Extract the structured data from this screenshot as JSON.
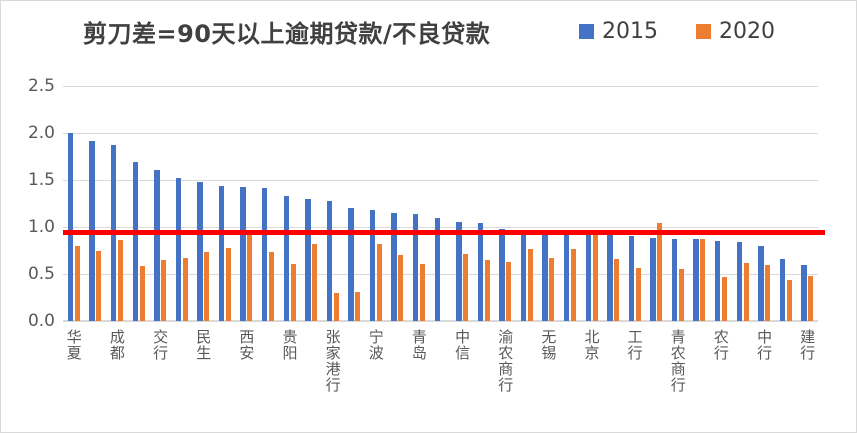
{
  "title": "剪刀差=90天以上逾期贷款/不良贷款",
  "legend": [
    {
      "label": "2015",
      "color": "#4472C4"
    },
    {
      "label": "2020",
      "color": "#ED7D31"
    }
  ],
  "colors": {
    "series_2015": "#4472C4",
    "series_2020": "#ED7D31",
    "reference_line": "#FF0000",
    "gridline": "#D9D9D9",
    "axis_text": "#595959",
    "title_text": "#404040"
  },
  "chart_data": {
    "type": "bar",
    "title": "剪刀差=90天以上逾期贷款/不良贷款",
    "xlabel": "",
    "ylabel": "",
    "ylim": [
      0,
      2.5
    ],
    "ytick_labels": [
      "0.0",
      "0.5",
      "1.0",
      "1.5",
      "2.0",
      "2.5"
    ],
    "grid": true,
    "legend_position": "top-right",
    "note": "35 paired bars; only every other category is labeled on the axis",
    "categories": [
      "华夏",
      "",
      "成都",
      "",
      "交行",
      "",
      "民生",
      "",
      "西安",
      "",
      "贵阳",
      "",
      "张家港行",
      "",
      "宁波",
      "",
      "青岛",
      "",
      "中信",
      "",
      "渝农商行",
      "",
      "无锡",
      "",
      "北京",
      "",
      "工行",
      "",
      "青农商行",
      "",
      "农行",
      "",
      "中行",
      "",
      "建行"
    ],
    "series": [
      {
        "name": "2015",
        "color": "#4472C4",
        "values": [
          2.0,
          1.92,
          1.87,
          1.69,
          1.61,
          1.52,
          1.48,
          1.44,
          1.43,
          1.42,
          1.33,
          1.3,
          1.28,
          1.2,
          1.18,
          1.15,
          1.14,
          1.1,
          1.05,
          1.04,
          0.98,
          0.93,
          0.92,
          0.92,
          0.92,
          0.91,
          0.9,
          0.88,
          0.87,
          0.87,
          0.85,
          0.84,
          0.8,
          0.66,
          0.6
        ]
      },
      {
        "name": "2020",
        "color": "#ED7D31",
        "values": [
          0.8,
          0.74,
          0.86,
          0.59,
          0.65,
          0.67,
          0.73,
          0.78,
          0.91,
          0.73,
          0.61,
          0.82,
          0.3,
          0.31,
          0.82,
          0.7,
          0.61,
          null,
          0.71,
          0.65,
          0.63,
          0.77,
          0.67,
          0.77,
          0.92,
          0.66,
          0.56,
          1.04,
          0.55,
          0.87,
          0.47,
          0.62,
          0.6,
          0.44,
          0.48
        ]
      }
    ],
    "reference_line": {
      "value": 0.94,
      "color": "#FF0000"
    }
  }
}
